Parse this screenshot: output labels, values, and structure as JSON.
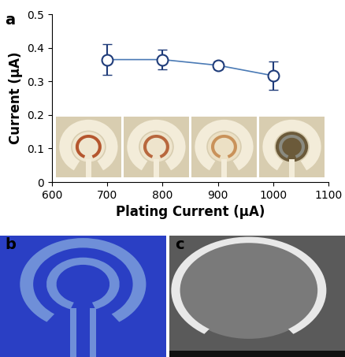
{
  "chart_data": {
    "type": "line",
    "x_label": "Plating Current (μA)",
    "y_label": "Current (μA)",
    "annotations": [
      "a",
      "b",
      "c"
    ],
    "x": [
      700,
      800,
      900,
      1000
    ],
    "values": [
      0.365,
      0.365,
      0.348,
      0.317
    ],
    "errors": [
      0.045,
      0.03,
      0.012,
      0.042
    ],
    "color": "#1f3c7a",
    "marker": "o",
    "line_style": "solid",
    "xlim": [
      600,
      1100
    ],
    "xticks": [
      600,
      700,
      800,
      900,
      1000,
      1100
    ],
    "ylim": [
      0,
      0.5
    ],
    "yticks": [
      0,
      0.1,
      0.2,
      0.3,
      0.4,
      0.5
    ],
    "grid": false
  }
}
